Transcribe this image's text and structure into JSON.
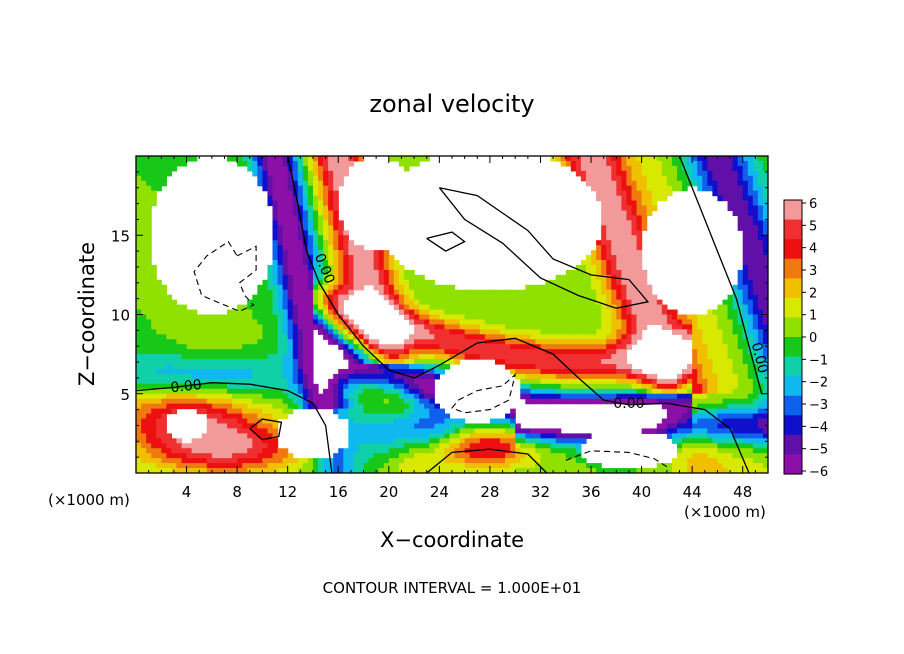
{
  "chart_data": {
    "type": "heatmap",
    "title": "zonal velocity",
    "xlabel": "X−coordinate",
    "ylabel": "Z−coordinate",
    "x_scale_note_left": "(×1000 m)",
    "x_scale_note_right": "(×1000 m)",
    "footer": "CONTOUR INTERVAL = 1.000E+01",
    "xlim": [
      0,
      50
    ],
    "ylim": [
      0,
      20
    ],
    "x_ticks": [
      4,
      8,
      12,
      16,
      20,
      24,
      28,
      32,
      36,
      40,
      44,
      48
    ],
    "y_ticks": [
      5,
      10,
      15
    ],
    "colorbar": {
      "range": [
        -6,
        6
      ],
      "ticks": [
        "6",
        "5",
        "4",
        "3",
        "2",
        "1",
        "0",
        "−1",
        "−2",
        "−3",
        "−4",
        "−5",
        "−6"
      ],
      "colors": [
        "#f29a9a",
        "#f03030",
        "#ee1010",
        "#f07a10",
        "#f0c000",
        "#d8e800",
        "#90e000",
        "#18c818",
        "#10d0a8",
        "#10b8f0",
        "#1060ee",
        "#1010cc",
        "#6010a8",
        "#8c10a8"
      ]
    },
    "contour_labels": [
      "0.00",
      "0.00",
      "0.00",
      "0.00"
    ],
    "contour_interval": 10
  }
}
